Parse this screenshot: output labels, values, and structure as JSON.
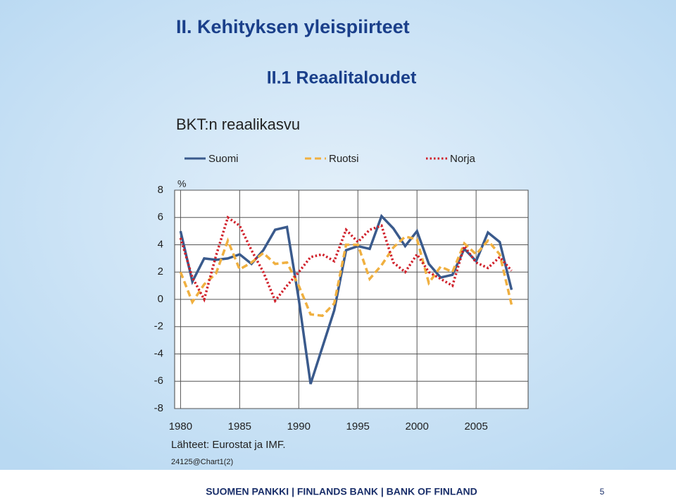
{
  "slide": {
    "title": "II. Kehityksen yleispiirteet",
    "subtitle": "II.1 Reaalitaloudet",
    "source": "Lähteet: Eurostat ja IMF.",
    "chart_id": "24125@Chart1(2)",
    "footer": "SUOMEN PANKKI | FINLANDS BANK | BANK OF FINLAND",
    "page": "5"
  },
  "chart_data": {
    "type": "line",
    "title": "BKT:n reaalikasvu",
    "y_label": "%",
    "x": [
      1980,
      1981,
      1982,
      1983,
      1984,
      1985,
      1986,
      1987,
      1988,
      1989,
      1990,
      1991,
      1992,
      1993,
      1994,
      1995,
      1996,
      1997,
      1998,
      1999,
      2000,
      2001,
      2002,
      2003,
      2004,
      2005,
      2006,
      2007,
      2008
    ],
    "series": [
      {
        "name": "Suomi",
        "color": "#3a5a8c",
        "dash": "solid",
        "values": [
          5.0,
          1.3,
          3.0,
          2.9,
          3.0,
          3.3,
          2.6,
          3.6,
          5.1,
          5.3,
          0.0,
          -6.2,
          -3.5,
          -0.8,
          3.6,
          3.9,
          3.7,
          6.1,
          5.2,
          3.9,
          5.0,
          2.6,
          1.6,
          1.8,
          3.7,
          2.8,
          4.9,
          4.2,
          0.7
        ]
      },
      {
        "name": "Ruotsi",
        "color": "#f0b040",
        "dash": "dashed",
        "values": [
          2.0,
          -0.2,
          1.1,
          1.9,
          4.3,
          2.2,
          2.7,
          3.4,
          2.6,
          2.7,
          1.0,
          -1.1,
          -1.2,
          -0.3,
          4.0,
          4.0,
          1.5,
          2.5,
          3.8,
          4.6,
          4.4,
          1.2,
          2.4,
          2.0,
          4.1,
          3.3,
          4.3,
          3.3,
          -0.4
        ]
      },
      {
        "name": "Norja",
        "color": "#d0202a",
        "dash": "dotted",
        "values": [
          4.5,
          1.6,
          0.0,
          3.2,
          6.0,
          5.4,
          3.6,
          2.0,
          -0.1,
          1.0,
          2.0,
          3.1,
          3.3,
          2.8,
          5.1,
          4.2,
          5.1,
          5.4,
          2.7,
          2.0,
          3.3,
          2.0,
          1.5,
          1.0,
          3.9,
          2.7,
          2.3,
          3.1,
          2.1
        ]
      }
    ],
    "xlim": [
      1979.5,
      2009.4
    ],
    "xticks": [
      1980,
      1985,
      1990,
      1995,
      2000,
      2005
    ],
    "ylim": [
      -8,
      8
    ],
    "yticks": [
      -8,
      -6,
      -4,
      -2,
      0,
      2,
      4,
      6,
      8
    ],
    "grid": true
  }
}
